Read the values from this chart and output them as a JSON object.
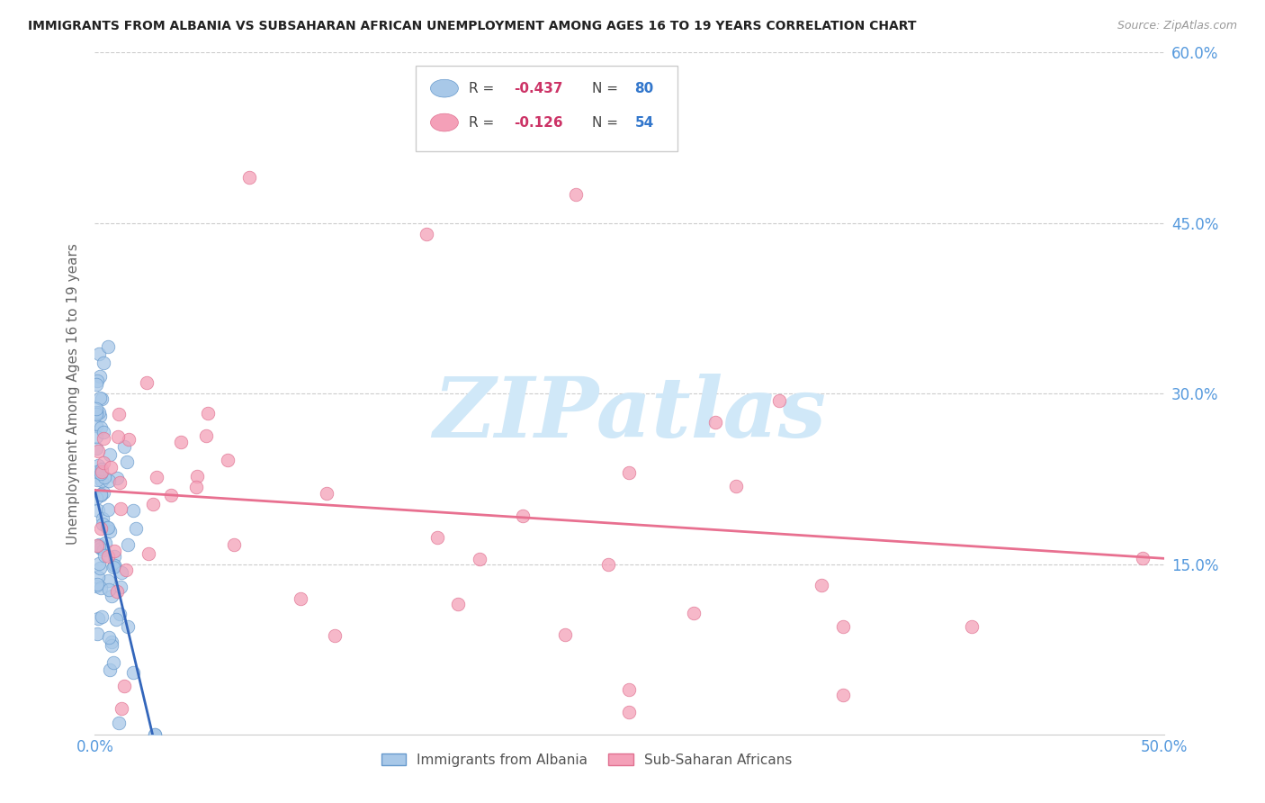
{
  "title": "IMMIGRANTS FROM ALBANIA VS SUBSAHARAN AFRICAN UNEMPLOYMENT AMONG AGES 16 TO 19 YEARS CORRELATION CHART",
  "source": "Source: ZipAtlas.com",
  "ylabel": "Unemployment Among Ages 16 to 19 years",
  "xlim": [
    0.0,
    0.5
  ],
  "ylim": [
    0.0,
    0.6
  ],
  "yticks_right": [
    0.15,
    0.3,
    0.45,
    0.6
  ],
  "ytick_right_labels": [
    "15.0%",
    "30.0%",
    "45.0%",
    "60.0%"
  ],
  "background_color": "#ffffff",
  "albania_color": "#a8c8e8",
  "albania_edge_color": "#6699cc",
  "subsaharan_color": "#f4a0b8",
  "subsaharan_edge_color": "#e07090",
  "watermark": "ZIPatlas",
  "watermark_color": "#d0e8f8",
  "blue_line_color": "#3366bb",
  "pink_line_color": "#e87090",
  "tick_color": "#5599dd",
  "albania_line_x0": 0.0,
  "albania_line_y0": 0.215,
  "albania_line_x1": 0.027,
  "albania_line_y1": 0.0,
  "subsaharan_line_x0": 0.0,
  "subsaharan_line_y0": 0.215,
  "subsaharan_line_x1": 0.5,
  "subsaharan_line_y1": 0.155
}
